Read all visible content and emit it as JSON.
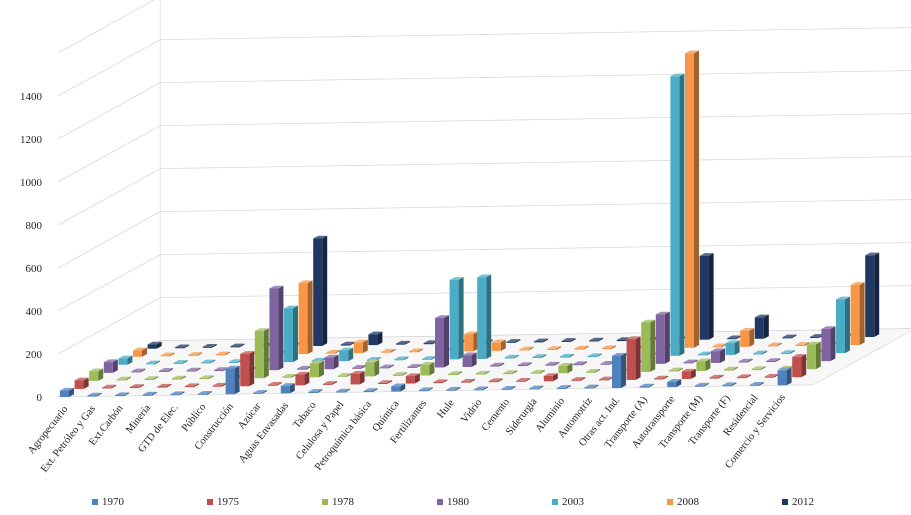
{
  "chart_data": {
    "type": "bar",
    "style": "3d-clustered-depth",
    "title": "",
    "xlabel": "",
    "ylabel": "",
    "ylim": [
      0,
      1400
    ],
    "yticks": [
      0,
      200,
      400,
      600,
      800,
      1000,
      1200,
      1400
    ],
    "grid": true,
    "legend_position": "bottom",
    "categories": [
      "Agropecuario",
      "Ext. Petróleo y Gas",
      "Ext.Carbón",
      "Minería",
      "GTD de Elec.",
      "Público",
      "Construcción",
      "Azúcar",
      "Aguas Envasadas",
      "Tabaco",
      "Celulosa y Papel",
      "Petroquímica básica",
      "Química",
      "Fertilizantes",
      "Hule",
      "Vidrio",
      "Cemento",
      "Siderurgia",
      "Aluminio",
      "Automotriz",
      "Otras act. Ind.",
      "Transporte (A)",
      "Autotransporte",
      "Transporte (M)",
      "Transporte (F)",
      "Residencial",
      "Comercio y Servicios"
    ],
    "series": [
      {
        "name": "1970",
        "color": "#4F81BD",
        "values": [
          30,
          5,
          5,
          5,
          5,
          5,
          120,
          5,
          35,
          5,
          5,
          5,
          25,
          5,
          5,
          5,
          5,
          5,
          5,
          5,
          150,
          5,
          25,
          5,
          5,
          5,
          70
        ]
      },
      {
        "name": "1975",
        "color": "#C0504D",
        "values": [
          40,
          5,
          5,
          5,
          5,
          5,
          150,
          5,
          50,
          5,
          50,
          5,
          35,
          5,
          5,
          5,
          5,
          25,
          5,
          5,
          190,
          5,
          35,
          5,
          5,
          5,
          95
        ]
      },
      {
        "name": "1978",
        "color": "#9BBB59",
        "values": [
          45,
          5,
          5,
          5,
          5,
          5,
          220,
          5,
          65,
          5,
          65,
          5,
          50,
          5,
          5,
          5,
          5,
          35,
          5,
          5,
          230,
          5,
          45,
          5,
          5,
          5,
          115
        ]
      },
      {
        "name": "1980",
        "color": "#8064A2",
        "values": [
          50,
          5,
          5,
          5,
          5,
          5,
          380,
          5,
          55,
          5,
          5,
          5,
          230,
          55,
          5,
          5,
          5,
          5,
          5,
          5,
          230,
          5,
          55,
          5,
          5,
          5,
          150
        ]
      },
      {
        "name": "2003",
        "color": "#4BACC6",
        "values": [
          30,
          5,
          5,
          5,
          5,
          5,
          250,
          5,
          50,
          5,
          5,
          5,
          370,
          380,
          5,
          5,
          5,
          5,
          5,
          5,
          1300,
          5,
          55,
          5,
          5,
          5,
          250
        ]
      },
      {
        "name": "2008",
        "color": "#F79646",
        "values": [
          30,
          5,
          5,
          5,
          5,
          5,
          330,
          5,
          50,
          5,
          5,
          5,
          80,
          40,
          5,
          5,
          5,
          5,
          5,
          5,
          1370,
          5,
          75,
          5,
          5,
          5,
          280
        ]
      },
      {
        "name": "2012",
        "color": "#1F3864",
        "values": [
          20,
          5,
          5,
          5,
          5,
          5,
          500,
          5,
          50,
          5,
          5,
          5,
          5,
          5,
          5,
          5,
          5,
          5,
          5,
          5,
          390,
          5,
          100,
          5,
          5,
          5,
          380
        ]
      }
    ]
  }
}
